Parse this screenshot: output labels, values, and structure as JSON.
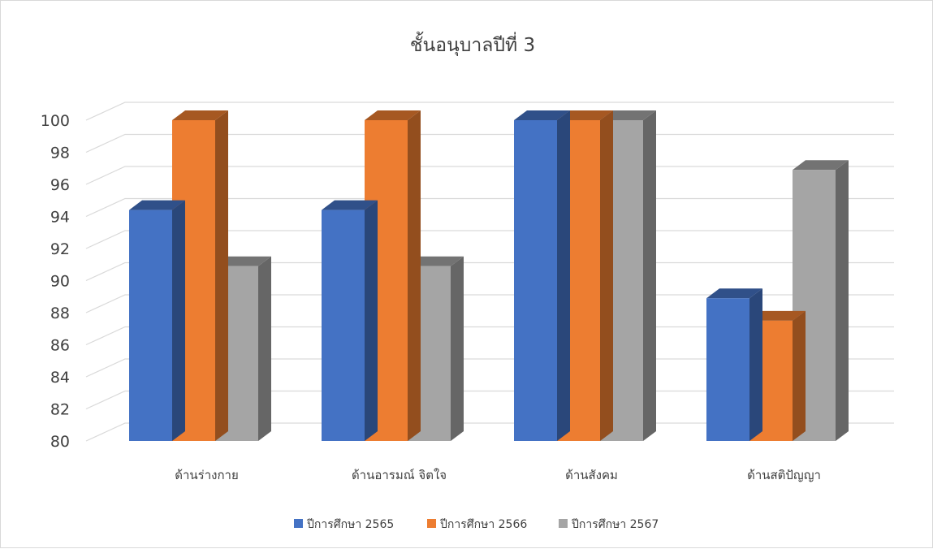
{
  "chart_data": {
    "type": "bar",
    "title": "ชั้นอนุบาลปีที่ 3",
    "xlabel": "",
    "ylabel": "",
    "ylim": [
      80,
      100
    ],
    "yticks": [
      80,
      82,
      84,
      86,
      88,
      90,
      92,
      94,
      96,
      98,
      100
    ],
    "grid": true,
    "legend_position": "bottom",
    "categories": [
      "ด้านร่างกาย",
      "ด้านอารมณ์ จิตใจ",
      "ด้านสังคม",
      "ด้านสติปัญญา"
    ],
    "series": [
      {
        "name": "ปีการศึกษา 2565",
        "color": "#4472C4",
        "values": [
          94.4,
          94.4,
          100,
          88.9
        ]
      },
      {
        "name": "ปีการศึกษา 2566",
        "color": "#ED7D31",
        "values": [
          100,
          100,
          100,
          87.5
        ]
      },
      {
        "name": "ปีการศึกษา 2567",
        "color": "#A5A5A5",
        "values": [
          90.9,
          90.9,
          100,
          96.9
        ]
      }
    ]
  }
}
